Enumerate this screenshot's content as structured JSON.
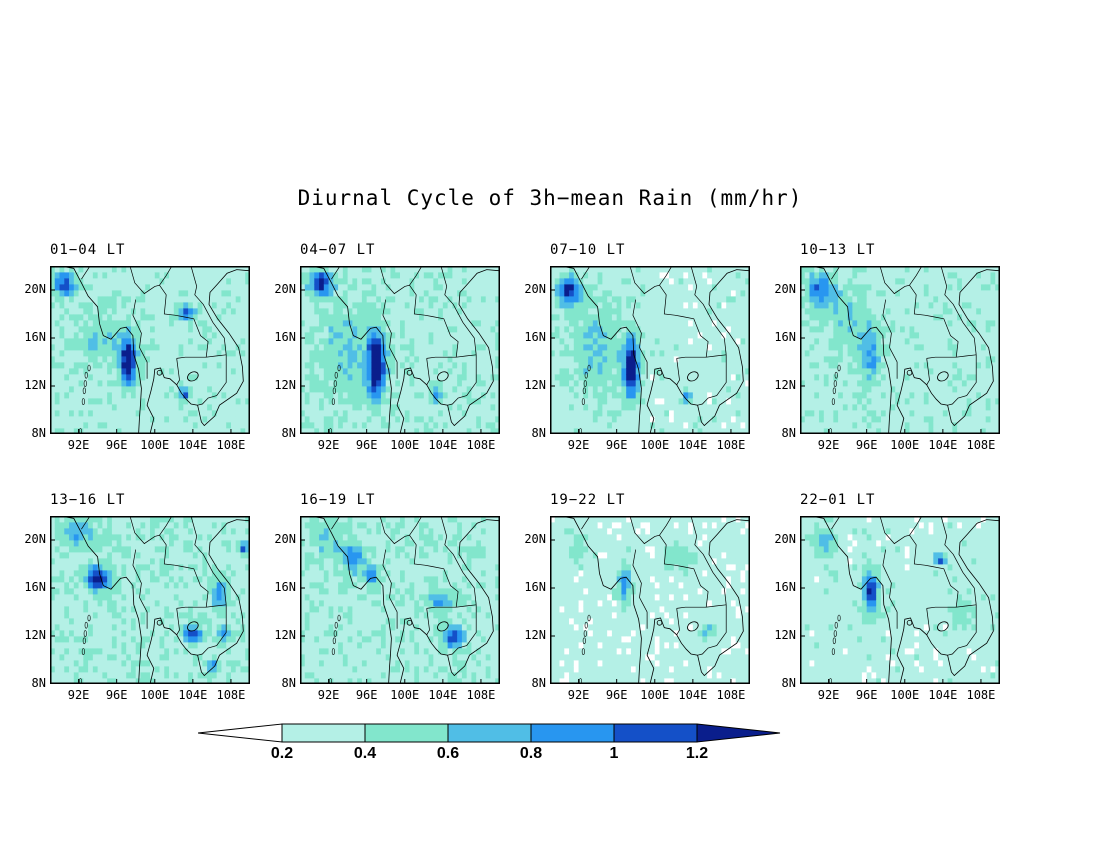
{
  "title": "Diurnal Cycle of 3h−mean Rain (mm/hr)",
  "panels": [
    {
      "label": "01−04 LT"
    },
    {
      "label": "04−07 LT"
    },
    {
      "label": "07−10 LT"
    },
    {
      "label": "10−13 LT"
    },
    {
      "label": "13−16 LT"
    },
    {
      "label": "16−19 LT"
    },
    {
      "label": "19−22 LT"
    },
    {
      "label": "22−01 LT"
    }
  ],
  "axes": {
    "lat_ticks": [
      "20N",
      "16N",
      "12N",
      "8N"
    ],
    "lon_ticks": [
      "92E",
      "96E",
      "100E",
      "104E",
      "108E"
    ]
  },
  "colorbar": {
    "labels": [
      "0.2",
      "0.4",
      "0.6",
      "0.8",
      "1",
      "1.2"
    ],
    "colors": [
      "#ffffff",
      "#b4f0e6",
      "#82e6cc",
      "#50bee6",
      "#2896f0",
      "#1450c8",
      "#0a1e8c"
    ]
  }
}
